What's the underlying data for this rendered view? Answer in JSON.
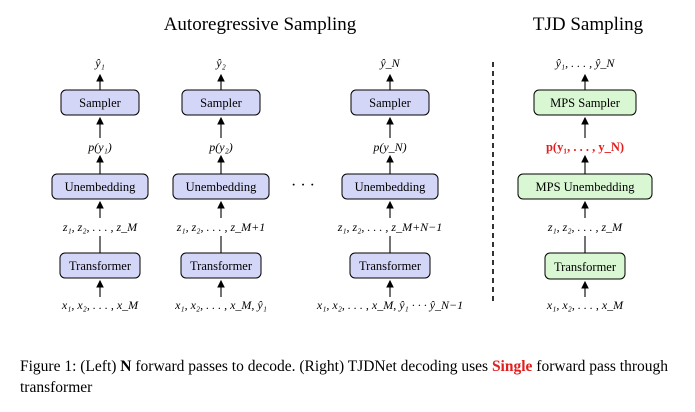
{
  "titles": {
    "left": "Autoregressive Sampling",
    "right": "TJD Sampling"
  },
  "columns": [
    {
      "output": "ŷ₁",
      "sampler": "Sampler",
      "prob": "p(y₁)",
      "unembed": "Unembedding",
      "latents": "z₁, z₂, . . . , z_M",
      "transformer": "Transformer",
      "inputs": "x₁, x₂, . . . , x_M"
    },
    {
      "output": "ŷ₂",
      "sampler": "Sampler",
      "prob": "p(y₂)",
      "unembed": "Unembedding",
      "latents": "z₁, z₂, . . . , z_M+1",
      "transformer": "Transformer",
      "inputs": "x₁, x₂, . . . , x_M, ŷ₁"
    },
    {
      "output": "ŷ_N",
      "sampler": "Sampler",
      "prob": "p(y_N)",
      "unembed": "Unembedding",
      "latents": "z₁, z₂, . . . , z_M+N−1",
      "transformer": "Transformer",
      "inputs": "x₁, x₂, . . . , x_M, ŷ₁ · · · ŷ_N−1"
    },
    {
      "output": "ŷ₁, . . . , ŷ_N",
      "sampler": "MPS Sampler",
      "prob": "p(y₁, . . . , y_N)",
      "unembed": "MPS Unembedding",
      "latents": "z₁, z₂, . . . , z_M",
      "transformer": "Transformer",
      "inputs": "x₁, x₂, . . . , x_M"
    }
  ],
  "ellipsis": "· · ·",
  "caption": {
    "part1": "Figure 1: (Left) ",
    "bold1": "N",
    "part2": " forward passes to decode. (Right) TJDNet decoding uses ",
    "red": "Single",
    "part3": " forward pass through transformer"
  }
}
